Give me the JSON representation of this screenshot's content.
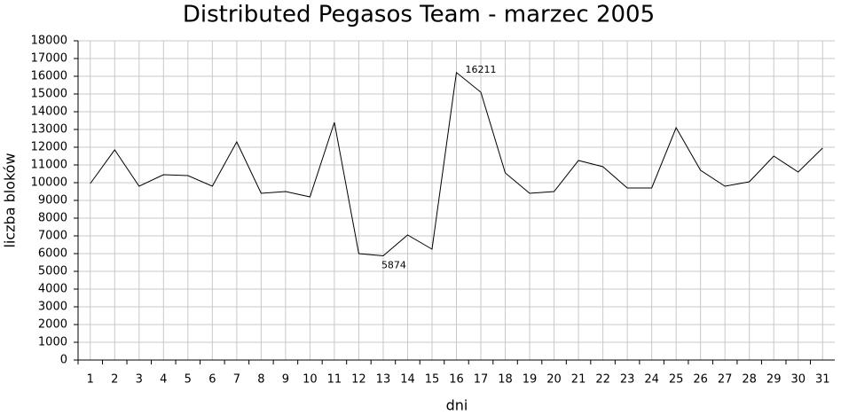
{
  "chart_data": {
    "type": "line",
    "title": "Distributed Pegasos Team - marzec 2005",
    "x_label": "dni",
    "y_label": "liczba bloków",
    "categories": [
      "1",
      "2",
      "3",
      "4",
      "5",
      "6",
      "7",
      "8",
      "9",
      "10",
      "11",
      "12",
      "13",
      "14",
      "15",
      "16",
      "17",
      "18",
      "19",
      "20",
      "21",
      "22",
      "23",
      "24",
      "25",
      "26",
      "27",
      "28",
      "29",
      "30",
      "31"
    ],
    "series": [
      {
        "name": "bloki",
        "color": "#000000",
        "values": [
          9950,
          11850,
          9800,
          10450,
          10400,
          9800,
          12300,
          9400,
          9500,
          9200,
          13400,
          6000,
          5874,
          7050,
          6250,
          16211,
          15100,
          10550,
          9400,
          9500,
          11250,
          10900,
          9700,
          9700,
          13100,
          10700,
          9800,
          10050,
          11500,
          10600,
          11950
        ]
      }
    ],
    "ylim": [
      0,
      18000
    ],
    "yticks": [
      0,
      1000,
      2000,
      3000,
      4000,
      5000,
      6000,
      7000,
      8000,
      9000,
      10000,
      11000,
      12000,
      13000,
      14000,
      15000,
      16000,
      17000,
      18000
    ],
    "grid": true,
    "label_extremes": true
  }
}
